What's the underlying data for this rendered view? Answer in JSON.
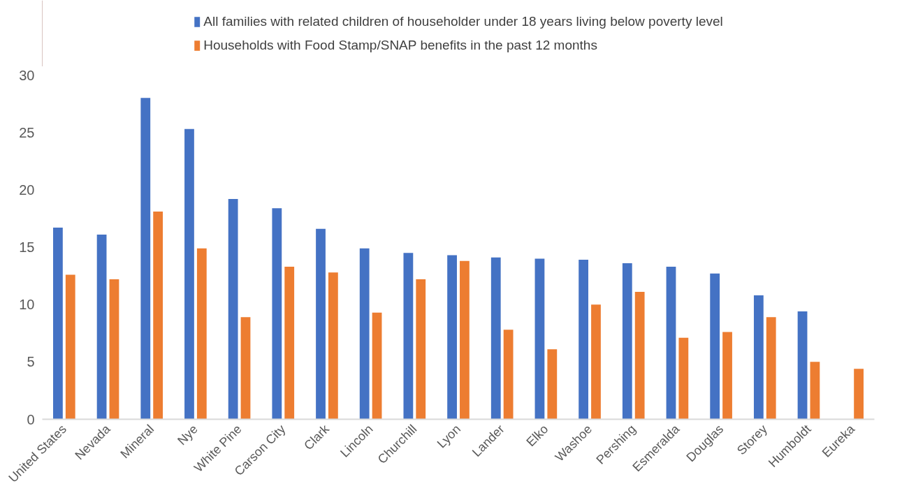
{
  "chart_data": {
    "type": "bar",
    "categories": [
      "United States",
      "Nevada",
      "Mineral",
      "Nye",
      "White Pine",
      "Carson City",
      "Clark",
      "Lincoln",
      "Churchill",
      "Lyon",
      "Lander",
      "Elko",
      "Washoe",
      "Pershing",
      "Esmeralda",
      "Douglas",
      "Storey",
      "Humboldt",
      "Eureka"
    ],
    "series": [
      {
        "name": "All families with related children of householder under 18 years living below poverty level",
        "color": "#4472c4",
        "values": [
          16.7,
          16.1,
          28.0,
          25.3,
          19.2,
          18.4,
          16.6,
          14.9,
          14.5,
          14.3,
          14.1,
          14.0,
          13.9,
          13.6,
          13.3,
          12.7,
          10.8,
          9.4,
          null
        ]
      },
      {
        "name": "Households with Food Stamp/SNAP benefits in the past 12 months",
        "color": "#ed7d31",
        "values": [
          12.6,
          12.2,
          18.1,
          14.9,
          8.9,
          13.3,
          12.8,
          9.3,
          12.2,
          13.8,
          7.8,
          6.1,
          10.0,
          11.1,
          7.1,
          7.6,
          8.9,
          5.0,
          4.4
        ]
      }
    ],
    "ylim": [
      0,
      30
    ],
    "yticks": [
      0,
      5,
      10,
      15,
      20,
      25,
      30
    ],
    "grid": false,
    "legend": "top"
  }
}
